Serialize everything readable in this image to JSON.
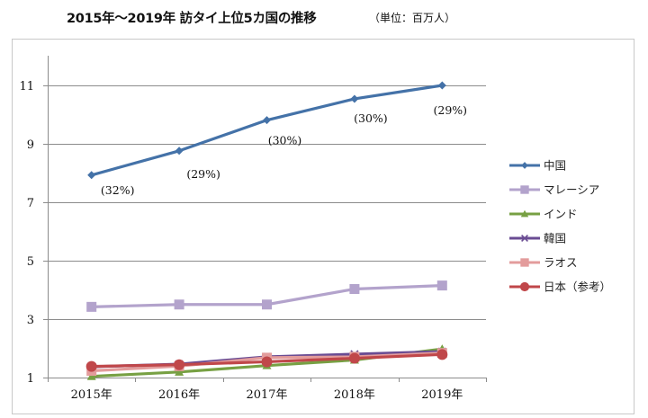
{
  "title": {
    "main": "2015年～2019年 訪タイ上位5カ国の推移",
    "unit": "（単位：百万人）"
  },
  "chart_data": {
    "type": "line",
    "title": "2015年～2019年 訪タイ上位5カ国の推移",
    "subtitle": "（単位：百万人）",
    "xlabel": "",
    "ylabel": "",
    "categories": [
      "2015年",
      "2016年",
      "2017年",
      "2018年",
      "2019年"
    ],
    "ylim": [
      1,
      12
    ],
    "yticks": [
      1,
      3,
      5,
      7,
      9,
      11
    ],
    "grid": true,
    "legend_position": "right",
    "series": [
      {
        "name": "中国",
        "color": "#4472a8",
        "marker": "diamond",
        "values": [
          7.93,
          8.76,
          9.81,
          10.54,
          11.0
        ]
      },
      {
        "name": "マレーシア",
        "color": "#b3a3cc",
        "marker": "square",
        "values": [
          3.42,
          3.5,
          3.5,
          4.03,
          4.15
        ]
      },
      {
        "name": "インド",
        "color": "#77a043",
        "marker": "triangle",
        "values": [
          1.04,
          1.19,
          1.41,
          1.6,
          1.98
        ]
      },
      {
        "name": "韓国",
        "color": "#6a4c93",
        "marker": "x",
        "values": [
          1.37,
          1.46,
          1.71,
          1.8,
          1.89
        ]
      },
      {
        "name": "ラオス",
        "color": "#e39c9c",
        "marker": "square",
        "values": [
          1.23,
          1.39,
          1.68,
          1.71,
          1.84
        ]
      },
      {
        "name": "日本（参考）",
        "color": "#c0474a",
        "marker": "circle",
        "values": [
          1.38,
          1.44,
          1.54,
          1.66,
          1.79
        ]
      }
    ],
    "annotations": [
      {
        "series": "中国",
        "category": "2015年",
        "text": "(32%)"
      },
      {
        "series": "中国",
        "category": "2016年",
        "text": "(29%)"
      },
      {
        "series": "中国",
        "category": "2017年",
        "text": "(30%)"
      },
      {
        "series": "中国",
        "category": "2018年",
        "text": "(30%)"
      },
      {
        "series": "中国",
        "category": "2019年",
        "text": "(29%)"
      }
    ]
  }
}
